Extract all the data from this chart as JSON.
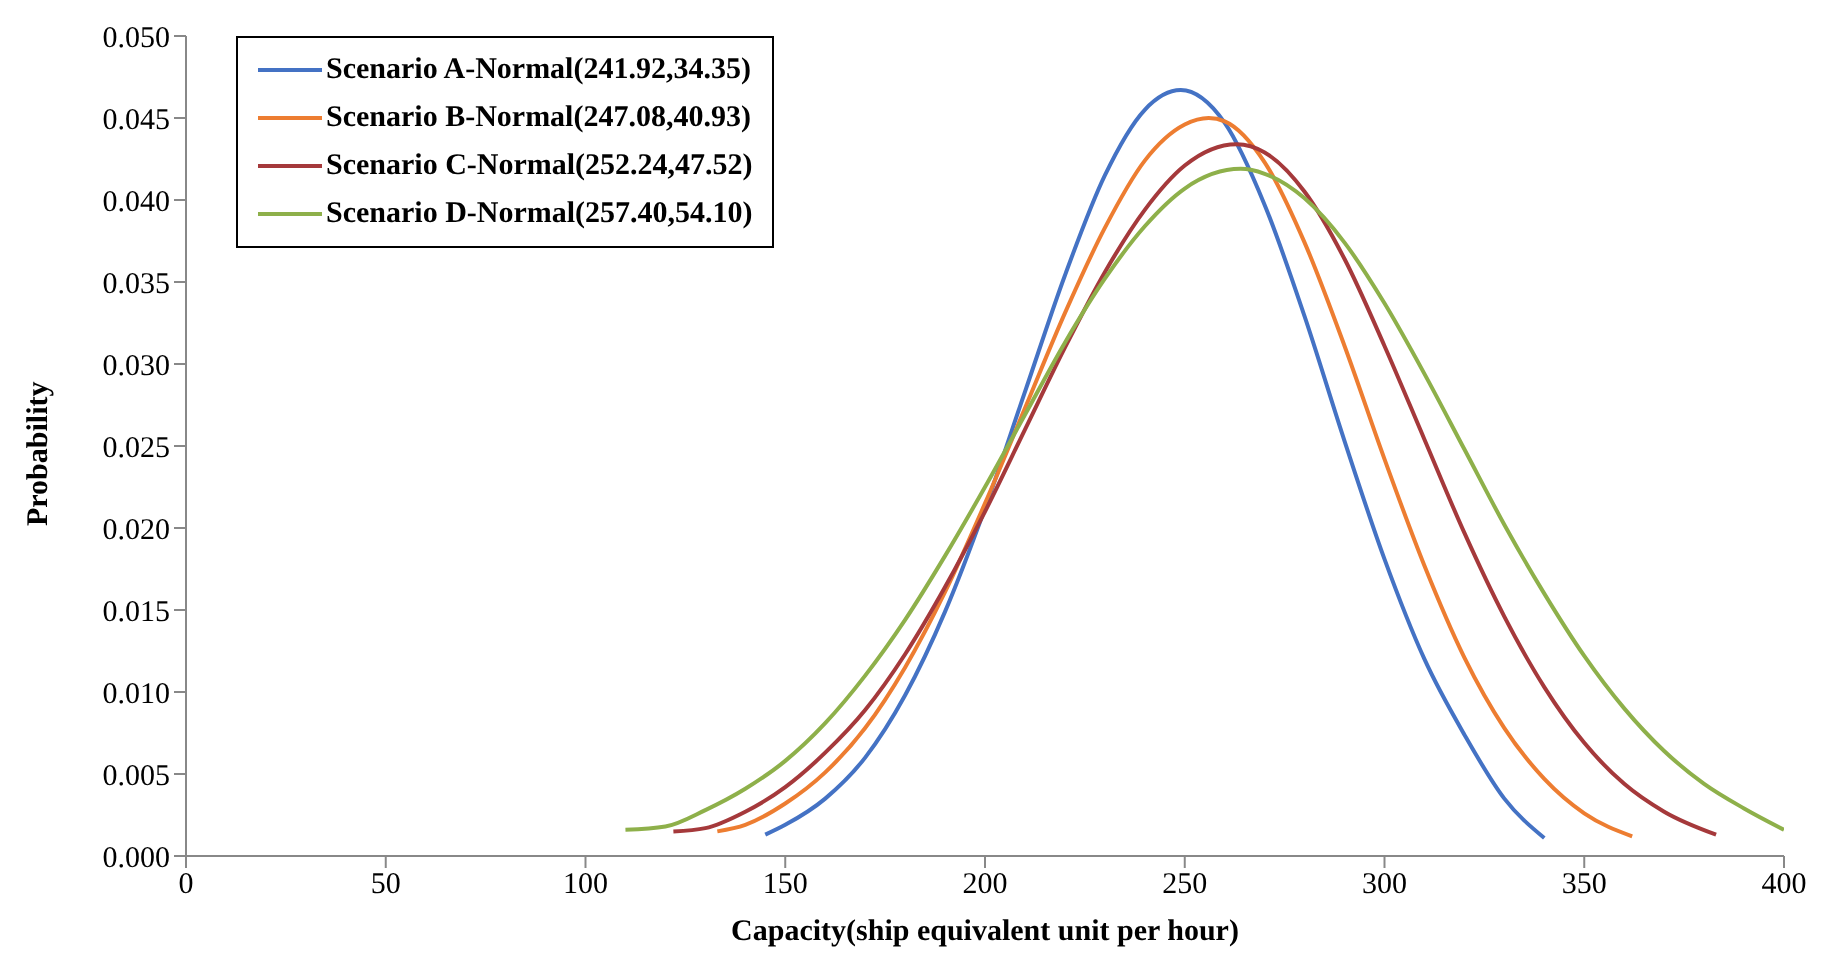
{
  "chart_data": {
    "type": "line",
    "xlabel": "Capacity(ship  equivalent unit  per hour)",
    "ylabel": "Probability",
    "xlim": [
      0,
      400
    ],
    "xticks": [
      0,
      50,
      100,
      150,
      200,
      250,
      300,
      350,
      400
    ],
    "ylim": [
      0,
      0.05
    ],
    "yticks": [
      {
        "value": 0,
        "label": "0.000"
      },
      {
        "value": 0.005,
        "label": "0.005"
      },
      {
        "value": 0.01,
        "label": "0.010"
      },
      {
        "value": 0.015,
        "label": "0.015"
      },
      {
        "value": 0.02,
        "label": "0.020"
      },
      {
        "value": 0.025,
        "label": "0.025"
      },
      {
        "value": 0.03,
        "label": "0.030"
      },
      {
        "value": 0.035,
        "label": "0.035"
      },
      {
        "value": 0.04,
        "label": "0.040"
      },
      {
        "value": 0.045,
        "label": "0.045"
      },
      {
        "value": 0.05,
        "label": "0.050"
      }
    ],
    "grid": false,
    "legend": "top left",
    "marker": "none",
    "line_style": "solid",
    "series": [
      {
        "name": "Scenario A-Normal(241.92,34.35)",
        "color": "#4472c4",
        "x": [
          145,
          150,
          160,
          170,
          180,
          190,
          200,
          210,
          220,
          230,
          240,
          249,
          260,
          270,
          280,
          290,
          300,
          310,
          320,
          330,
          340
        ],
        "values": [
          0.0013,
          0.0019,
          0.0035,
          0.006,
          0.0098,
          0.0149,
          0.0212,
          0.0283,
          0.0354,
          0.0415,
          0.0455,
          0.0467,
          0.0447,
          0.0397,
          0.0329,
          0.0253,
          0.0181,
          0.012,
          0.0074,
          0.0035,
          0.0011
        ]
      },
      {
        "name": "Scenario B-Normal(247.08,40.93)",
        "color": "#ed7d31",
        "x": [
          133,
          140,
          150,
          160,
          170,
          180,
          190,
          200,
          210,
          220,
          230,
          240,
          250,
          256,
          260,
          270,
          280,
          290,
          300,
          310,
          320,
          330,
          340,
          350,
          362
        ],
        "values": [
          0.0015,
          0.0019,
          0.0032,
          0.0051,
          0.0078,
          0.0115,
          0.0161,
          0.0215,
          0.0273,
          0.0331,
          0.0383,
          0.0424,
          0.0446,
          0.045,
          0.0448,
          0.0423,
          0.0374,
          0.0311,
          0.0242,
          0.0177,
          0.0121,
          0.0078,
          0.0047,
          0.0026,
          0.0012
        ]
      },
      {
        "name": "Scenario C-Normal(252.24,47.52)",
        "color": "#a5393b",
        "x": [
          122,
          130,
          140,
          150,
          160,
          170,
          180,
          190,
          200,
          210,
          220,
          230,
          240,
          250,
          263,
          270,
          280,
          290,
          300,
          310,
          320,
          330,
          340,
          350,
          360,
          370,
          383
        ],
        "values": [
          0.0015,
          0.0017,
          0.0027,
          0.0042,
          0.0063,
          0.0089,
          0.0123,
          0.0164,
          0.021,
          0.026,
          0.031,
          0.0356,
          0.0394,
          0.0421,
          0.0434,
          0.0429,
          0.0405,
          0.0364,
          0.0311,
          0.0254,
          0.0197,
          0.0146,
          0.0103,
          0.0069,
          0.0044,
          0.0027,
          0.0013
        ]
      },
      {
        "name": "Scenario D-Normal(257.40,54.10)",
        "color": "#8eb04a",
        "x": [
          110,
          120,
          130,
          140,
          150,
          160,
          170,
          180,
          190,
          200,
          210,
          220,
          230,
          240,
          250,
          264,
          270,
          280,
          290,
          300,
          310,
          320,
          330,
          340,
          350,
          360,
          370,
          380,
          390,
          400
        ],
        "values": [
          0.0016,
          0.0018,
          0.0028,
          0.0041,
          0.0058,
          0.0081,
          0.011,
          0.0144,
          0.0183,
          0.0225,
          0.0269,
          0.0313,
          0.0352,
          0.0384,
          0.0407,
          0.0419,
          0.0416,
          0.0401,
          0.0374,
          0.0337,
          0.0294,
          0.0248,
          0.0202,
          0.016,
          0.0122,
          0.009,
          0.0064,
          0.0044,
          0.0029,
          0.0016
        ]
      }
    ]
  }
}
